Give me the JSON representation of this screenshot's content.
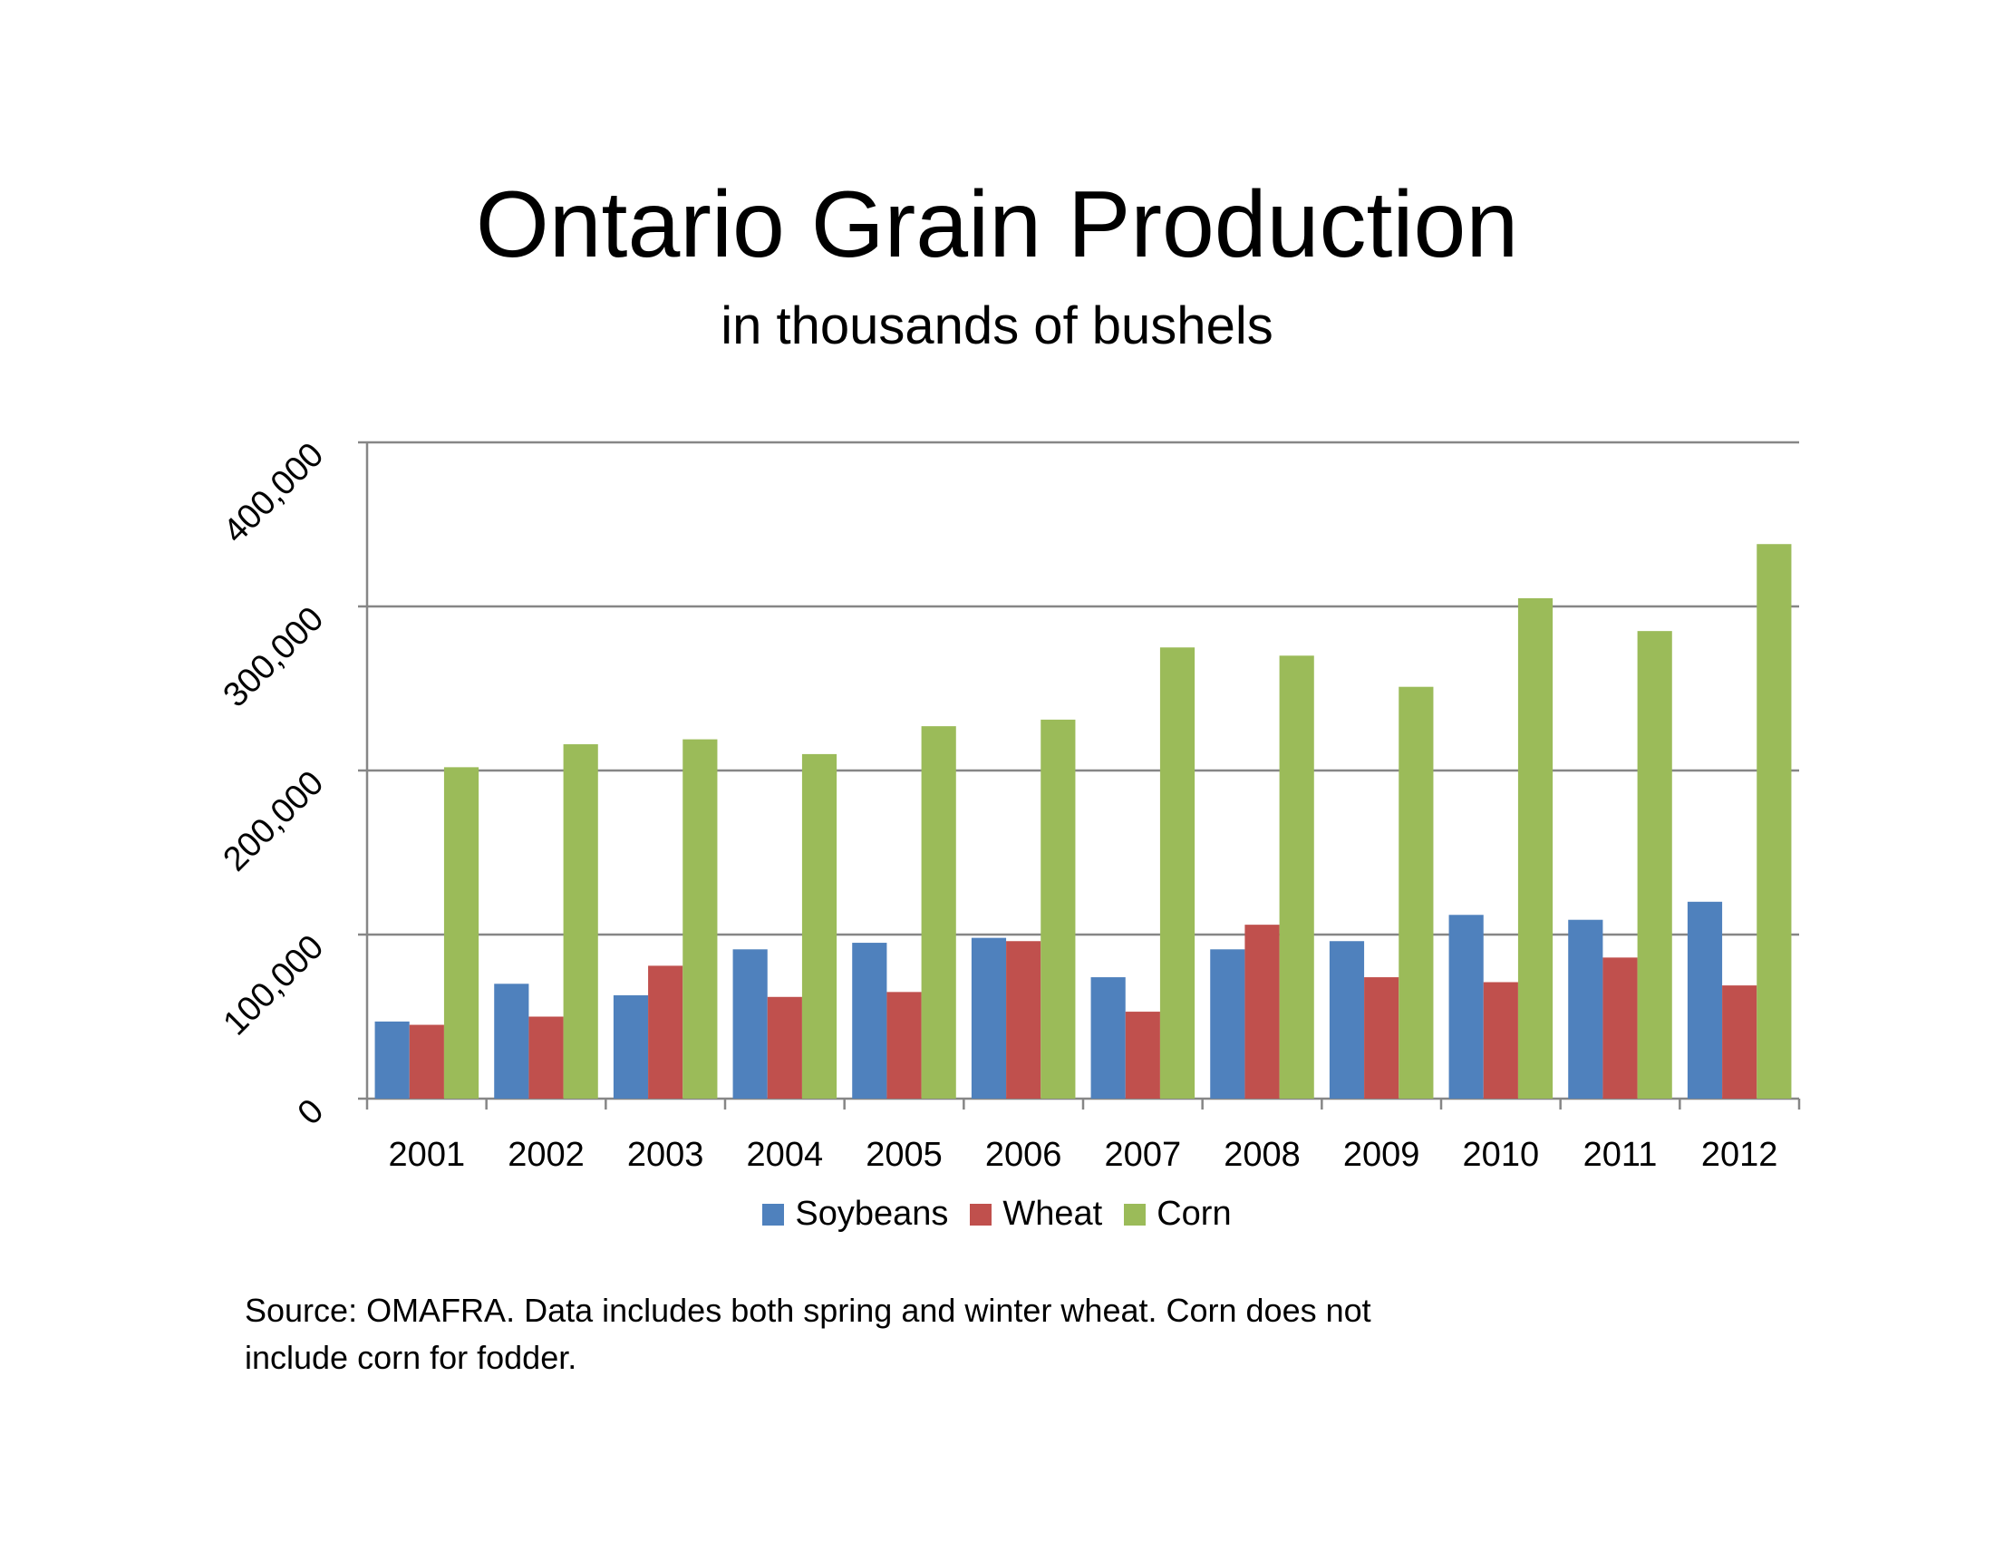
{
  "title": "Ontario Grain Production",
  "subtitle": "in thousands of bushels",
  "note": "Source: OMAFRA.  Data includes both spring and winter wheat.  Corn does not include corn for fodder.",
  "colors": {
    "Soybeans": "#4f81bd",
    "Wheat": "#c0504d",
    "Corn": "#9bbb59",
    "grid": "#868686"
  },
  "chart_data": {
    "type": "bar",
    "title": "Ontario Grain Production",
    "subtitle": "in thousands of bushels",
    "categories": [
      "2001",
      "2002",
      "2003",
      "2004",
      "2005",
      "2006",
      "2007",
      "2008",
      "2009",
      "2010",
      "2011",
      "2012"
    ],
    "series": [
      {
        "name": "Soybeans",
        "values": [
          47000,
          70000,
          63000,
          91000,
          95000,
          98000,
          74000,
          91000,
          96000,
          112000,
          109000,
          120000
        ]
      },
      {
        "name": "Wheat",
        "values": [
          45000,
          50000,
          81000,
          62000,
          65000,
          96000,
          53000,
          106000,
          74000,
          71000,
          86000,
          69000
        ]
      },
      {
        "name": "Corn",
        "values": [
          202000,
          216000,
          219000,
          210000,
          227000,
          231000,
          275000,
          270000,
          251000,
          305000,
          285000,
          338000
        ]
      }
    ],
    "yticks": [
      "0",
      "100,000",
      "200,000",
      "300,000",
      "400,000"
    ],
    "ylim": [
      0,
      400000
    ],
    "grid": true,
    "legend": "bottom"
  }
}
